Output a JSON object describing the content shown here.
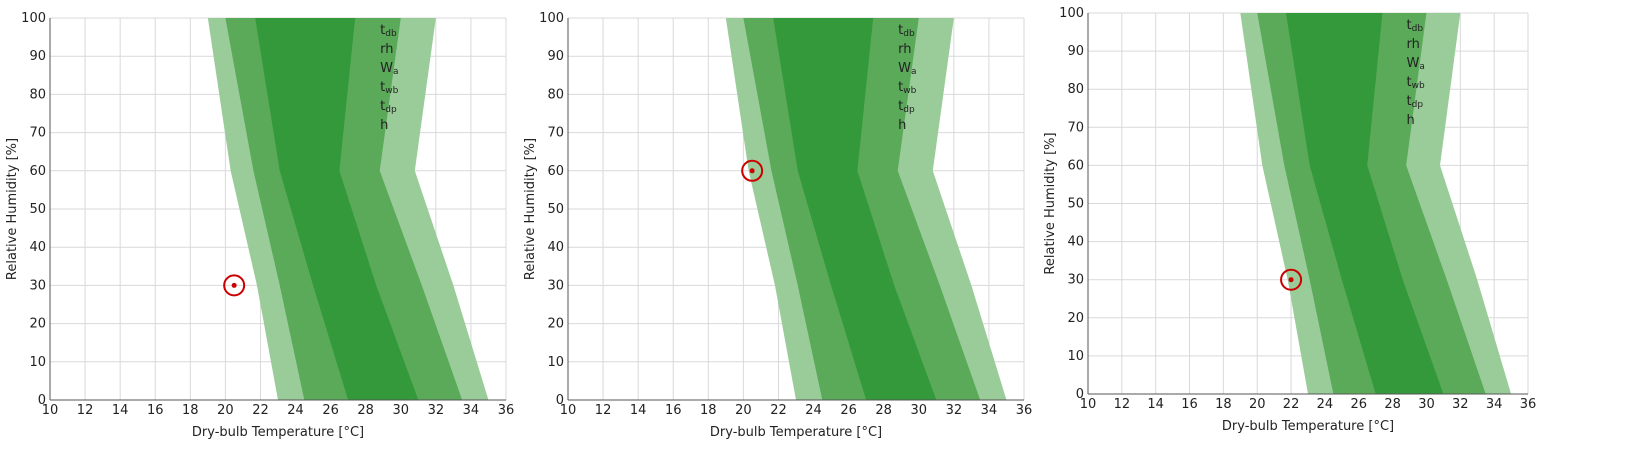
{
  "chart_data": [
    {
      "type": "area",
      "xlabel": "Dry-bulb Temperature [°C]",
      "ylabel": "Relative Humidity [%]",
      "xlim": [
        10,
        36
      ],
      "ylim": [
        0,
        100
      ],
      "xticks": [
        "10",
        "12",
        "14",
        "16",
        "18",
        "20",
        "22",
        "24",
        "26",
        "28",
        "30",
        "32",
        "34",
        "36"
      ],
      "yticks": [
        "0",
        "10",
        "20",
        "30",
        "40",
        "50",
        "60",
        "70",
        "80",
        "90",
        "100"
      ],
      "grid": true,
      "legend_position": "top-right",
      "legend": [
        {
          "main": "t",
          "sub": "db"
        },
        {
          "main": "rh",
          "sub": ""
        },
        {
          "main": "W",
          "sub": "a"
        },
        {
          "main": "t",
          "sub": "wb"
        },
        {
          "main": "t",
          "sub": "dp"
        },
        {
          "main": "h",
          "sub": ""
        }
      ],
      "bands": [
        {
          "color": "#99cc99",
          "left": [
            [
              19.0,
              100
            ],
            [
              20.3,
              60
            ],
            [
              21.8,
              30
            ],
            [
              23.0,
              0
            ]
          ],
          "right": [
            [
              32.0,
              100
            ],
            [
              30.8,
              60
            ],
            [
              33.0,
              30
            ],
            [
              35.0,
              0
            ]
          ]
        },
        {
          "color": "#5aaa5a",
          "left": [
            [
              20.0,
              100
            ],
            [
              21.6,
              60
            ],
            [
              23.1,
              30
            ],
            [
              24.5,
              0
            ]
          ],
          "right": [
            [
              30.0,
              100
            ],
            [
              28.8,
              60
            ],
            [
              31.2,
              30
            ],
            [
              33.5,
              0
            ]
          ]
        },
        {
          "color": "#33993a",
          "left": [
            [
              21.7,
              100
            ],
            [
              23.1,
              60
            ],
            [
              25.0,
              30
            ],
            [
              27.0,
              0
            ]
          ],
          "right": [
            [
              27.4,
              100
            ],
            [
              26.5,
              60
            ],
            [
              28.6,
              30
            ],
            [
              31.0,
              0
            ]
          ]
        }
      ],
      "point": {
        "x": 20.5,
        "y": 30,
        "color": "#cc0000"
      }
    },
    {
      "type": "area",
      "xlabel": "Dry-bulb Temperature [°C]",
      "ylabel": "Relative Humidity [%]",
      "xlim": [
        10,
        36
      ],
      "ylim": [
        0,
        100
      ],
      "xticks": [
        "10",
        "12",
        "14",
        "16",
        "18",
        "20",
        "22",
        "24",
        "26",
        "28",
        "30",
        "32",
        "34",
        "36"
      ],
      "yticks": [
        "0",
        "10",
        "20",
        "30",
        "40",
        "50",
        "60",
        "70",
        "80",
        "90",
        "100"
      ],
      "grid": true,
      "legend_position": "top-right",
      "legend": [
        {
          "main": "t",
          "sub": "db"
        },
        {
          "main": "rh",
          "sub": ""
        },
        {
          "main": "W",
          "sub": "a"
        },
        {
          "main": "t",
          "sub": "wb"
        },
        {
          "main": "t",
          "sub": "dp"
        },
        {
          "main": "h",
          "sub": ""
        }
      ],
      "bands": [
        {
          "color": "#99cc99",
          "left": [
            [
              19.0,
              100
            ],
            [
              20.3,
              60
            ],
            [
              21.8,
              30
            ],
            [
              23.0,
              0
            ]
          ],
          "right": [
            [
              32.0,
              100
            ],
            [
              30.8,
              60
            ],
            [
              33.0,
              30
            ],
            [
              35.0,
              0
            ]
          ]
        },
        {
          "color": "#5aaa5a",
          "left": [
            [
              20.0,
              100
            ],
            [
              21.6,
              60
            ],
            [
              23.1,
              30
            ],
            [
              24.5,
              0
            ]
          ],
          "right": [
            [
              30.0,
              100
            ],
            [
              28.8,
              60
            ],
            [
              31.2,
              30
            ],
            [
              33.5,
              0
            ]
          ]
        },
        {
          "color": "#33993a",
          "left": [
            [
              21.7,
              100
            ],
            [
              23.1,
              60
            ],
            [
              25.0,
              30
            ],
            [
              27.0,
              0
            ]
          ],
          "right": [
            [
              27.4,
              100
            ],
            [
              26.5,
              60
            ],
            [
              28.6,
              30
            ],
            [
              31.0,
              0
            ]
          ]
        }
      ],
      "point": {
        "x": 20.5,
        "y": 60,
        "color": "#cc0000"
      }
    },
    {
      "type": "area",
      "xlabel": "Dry-bulb Temperature [°C]",
      "ylabel": "Relative Humidity [%]",
      "xlim": [
        10,
        36
      ],
      "ylim": [
        0,
        100
      ],
      "xticks": [
        "10",
        "12",
        "14",
        "16",
        "18",
        "20",
        "22",
        "24",
        "26",
        "28",
        "30",
        "32",
        "34",
        "36"
      ],
      "yticks": [
        "0",
        "10",
        "20",
        "30",
        "40",
        "50",
        "60",
        "70",
        "80",
        "90",
        "100"
      ],
      "grid": true,
      "legend_position": "top-right",
      "legend": [
        {
          "main": "t",
          "sub": "db"
        },
        {
          "main": "rh",
          "sub": ""
        },
        {
          "main": "W",
          "sub": "a"
        },
        {
          "main": "t",
          "sub": "wb"
        },
        {
          "main": "t",
          "sub": "dp"
        },
        {
          "main": "h",
          "sub": ""
        }
      ],
      "bands": [
        {
          "color": "#99cc99",
          "left": [
            [
              19.0,
              100
            ],
            [
              20.3,
              60
            ],
            [
              21.8,
              30
            ],
            [
              23.0,
              0
            ]
          ],
          "right": [
            [
              32.0,
              100
            ],
            [
              30.8,
              60
            ],
            [
              33.0,
              30
            ],
            [
              35.0,
              0
            ]
          ]
        },
        {
          "color": "#5aaa5a",
          "left": [
            [
              20.0,
              100
            ],
            [
              21.6,
              60
            ],
            [
              23.1,
              30
            ],
            [
              24.5,
              0
            ]
          ],
          "right": [
            [
              30.0,
              100
            ],
            [
              28.8,
              60
            ],
            [
              31.2,
              30
            ],
            [
              33.5,
              0
            ]
          ]
        },
        {
          "color": "#33993a",
          "left": [
            [
              21.7,
              100
            ],
            [
              23.1,
              60
            ],
            [
              25.0,
              30
            ],
            [
              27.0,
              0
            ]
          ],
          "right": [
            [
              27.4,
              100
            ],
            [
              26.5,
              60
            ],
            [
              28.6,
              30
            ],
            [
              31.0,
              0
            ]
          ]
        }
      ],
      "point": {
        "x": 22.0,
        "y": 30,
        "color": "#cc0000"
      }
    }
  ]
}
